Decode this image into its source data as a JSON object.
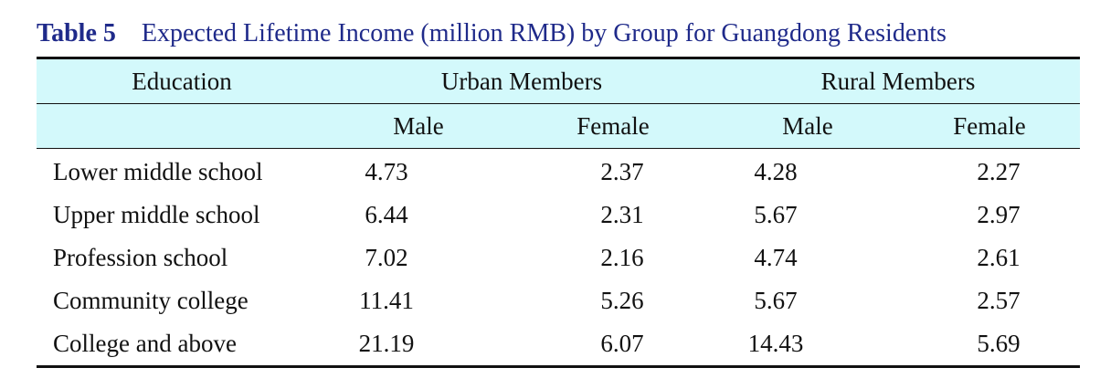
{
  "caption": {
    "label": "Table 5",
    "title": "Expected Lifetime Income (million RMB) by Group for Guangdong Residents"
  },
  "header": {
    "education": "Education",
    "urban": "Urban Members",
    "rural": "Rural Members",
    "sub": [
      "Male",
      "Female",
      "Male",
      "Female"
    ]
  },
  "rows": [
    {
      "education": "Lower middle school",
      "urban_male": "4.73",
      "urban_female": "2.37",
      "rural_male": "4.28",
      "rural_female": "2.27"
    },
    {
      "education": "Upper middle school",
      "urban_male": "6.44",
      "urban_female": "2.31",
      "rural_male": "5.67",
      "rural_female": "2.97"
    },
    {
      "education": "Profession school",
      "urban_male": "7.02",
      "urban_female": "2.16",
      "rural_male": "4.74",
      "rural_female": "2.61"
    },
    {
      "education": "Community college",
      "urban_male": "11.41",
      "urban_female": "5.26",
      "rural_male": "5.67",
      "rural_female": "2.57"
    },
    {
      "education": "College and above",
      "urban_male": "21.19",
      "urban_female": "6.07",
      "rural_male": "14.43",
      "rural_female": "5.69"
    }
  ]
}
